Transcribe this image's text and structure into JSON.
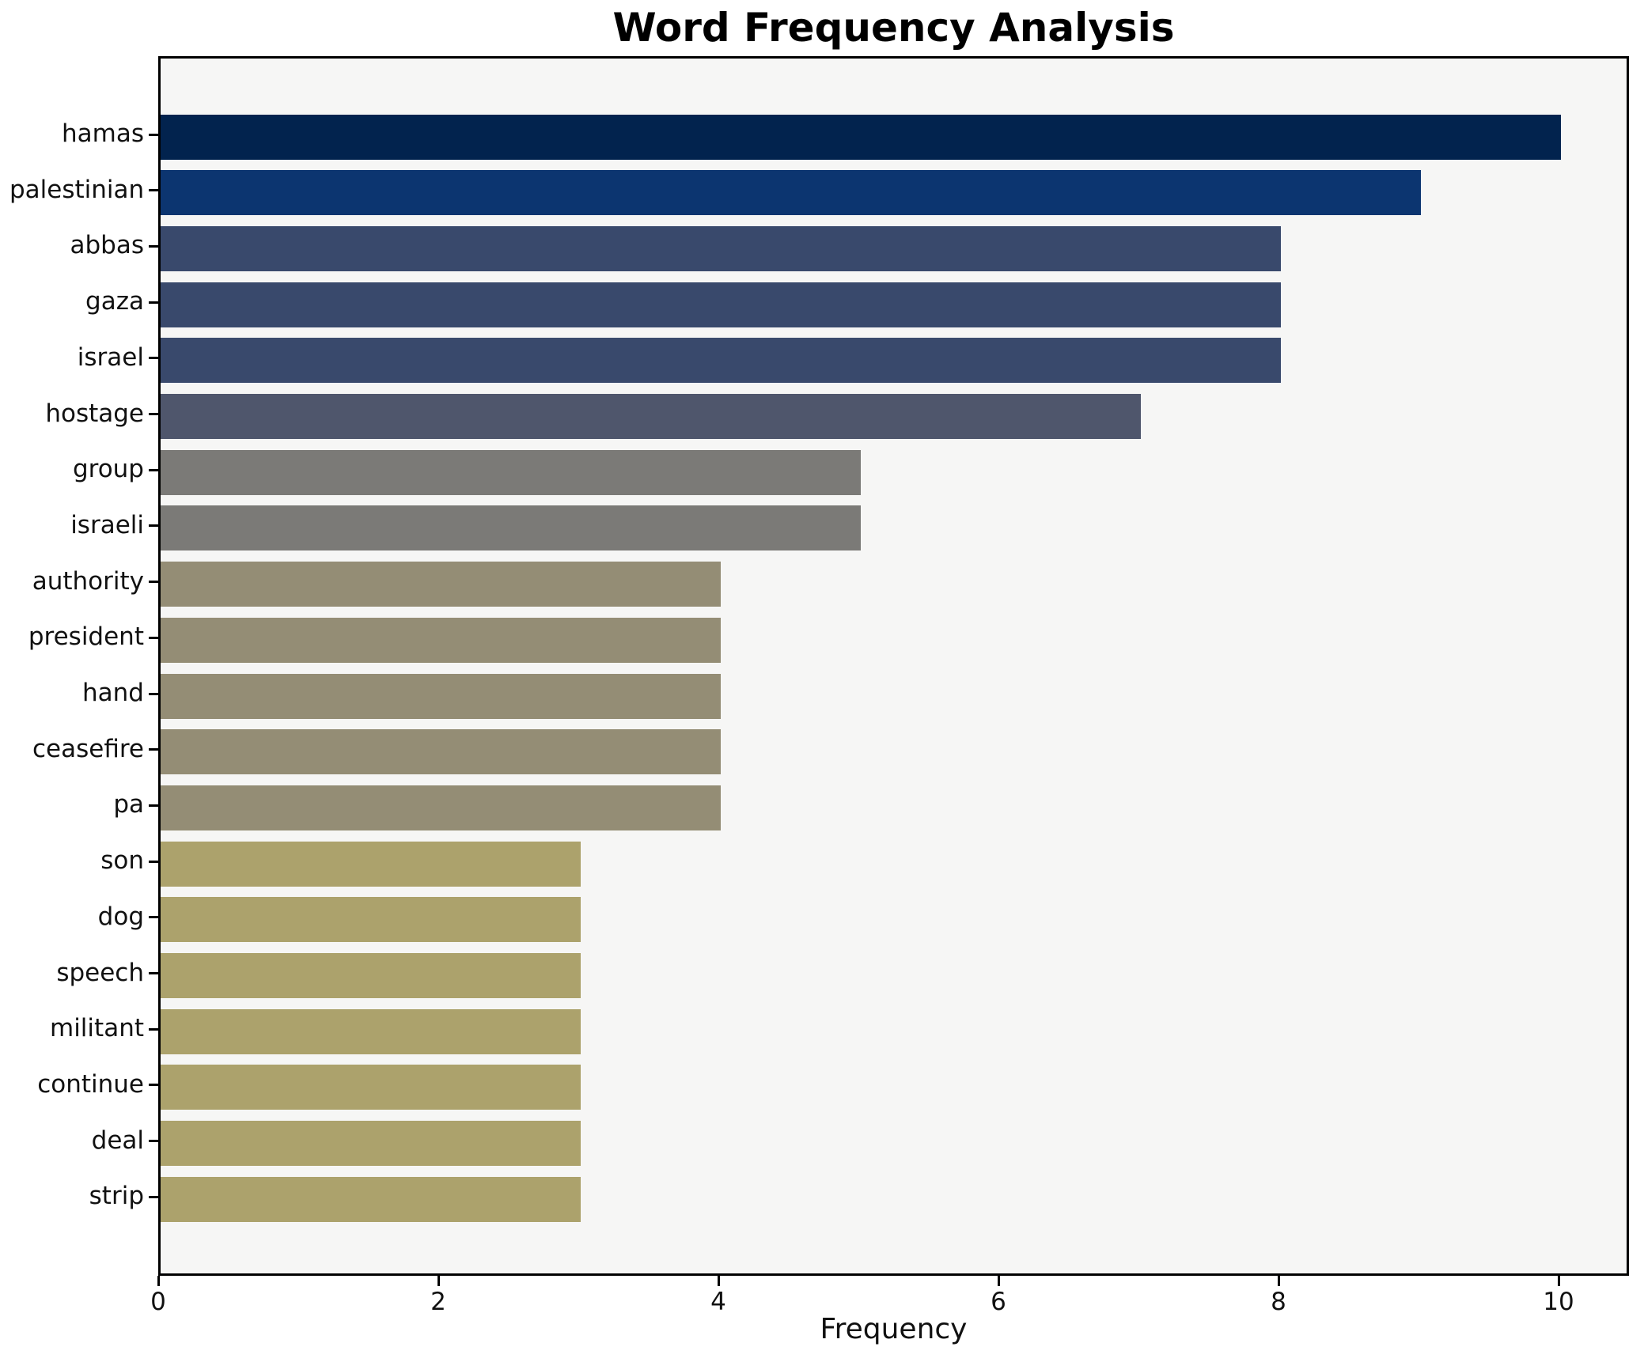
{
  "chart_data": {
    "type": "bar",
    "orientation": "horizontal",
    "title": "Word Frequency Analysis",
    "xlabel": "Frequency",
    "ylabel": "",
    "xlim": [
      0,
      10
    ],
    "xticks": [
      "0",
      "2",
      "4",
      "6",
      "8",
      "10"
    ],
    "xtick_values": [
      0,
      2,
      4,
      6,
      8,
      10
    ],
    "grid": false,
    "legend": false,
    "plot_background": "#f6f6f5",
    "figure_background": "#ffffff",
    "spine_color": "#000000",
    "text_color": "#111111",
    "categories": [
      "hamas",
      "palestinian",
      "abbas",
      "gaza",
      "israel",
      "hostage",
      "group",
      "israeli",
      "authority",
      "president",
      "hand",
      "ceasefire",
      "pa",
      "son",
      "dog",
      "speech",
      "militant",
      "continue",
      "deal",
      "strip"
    ],
    "values": [
      10,
      9,
      8,
      8,
      8,
      7,
      5,
      5,
      4,
      4,
      4,
      4,
      4,
      3,
      3,
      3,
      3,
      3,
      3,
      3
    ],
    "bar_colors": [
      "#02234e",
      "#0c3570",
      "#39496c",
      "#39496c",
      "#39496c",
      "#4f566c",
      "#7b7a77",
      "#7b7a77",
      "#948d75",
      "#948d75",
      "#948d75",
      "#948d75",
      "#948d75",
      "#aca26c",
      "#aca26c",
      "#aca26c",
      "#aca26c",
      "#aca26c",
      "#aca26c",
      "#aca26c"
    ]
  }
}
